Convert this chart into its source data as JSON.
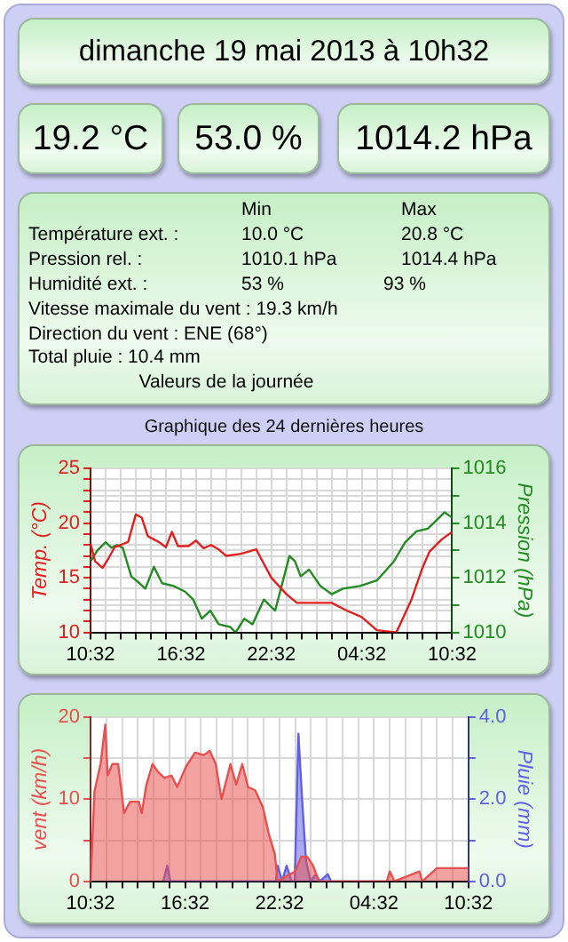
{
  "chart_data": [
    {
      "type": "other",
      "title": "dimanche 19 mai 2013 à 10h32",
      "annotations": [
        "19.2 °C",
        "53.0 %",
        "1014.2 hPa",
        "Min",
        "Max",
        "Température ext. :",
        "10.0 °C",
        "20.8 °C",
        "Pression rel. :",
        "1010.1 hPa",
        "1014.4 hPa",
        "Humidité ext. :",
        "53 %",
        "93 %",
        "Vitesse maximale du vent : 19.3 km/h",
        "Direction du vent : ENE (68°)",
        "Total pluie : 10.4 mm",
        "Valeurs de la journée"
      ]
    },
    {
      "type": "line",
      "title": "Graphique des 24 dernières heures",
      "ylabel": "Temp. (°C)",
      "y2label": "Pression (hPa)",
      "legend": false,
      "grid": true,
      "marker": "none",
      "line_style": "solid",
      "xlim": [
        "2013-05-18T10:32",
        "2013-05-19T10:32"
      ],
      "xticks": [
        {
          "value": "2013-05-18T10:32",
          "label": "10:32"
        },
        {
          "value": "2013-05-18T11:32",
          "label": null
        },
        {
          "value": "2013-05-18T12:32",
          "label": null
        },
        {
          "value": "2013-05-18T13:32",
          "label": null
        },
        {
          "value": "2013-05-18T14:32",
          "label": null
        },
        {
          "value": "2013-05-18T15:32",
          "label": null
        },
        {
          "value": "2013-05-18T16:32",
          "label": "16:32"
        },
        {
          "value": "2013-05-18T17:32",
          "label": null
        },
        {
          "value": "2013-05-18T18:32",
          "label": null
        },
        {
          "value": "2013-05-18T19:32",
          "label": null
        },
        {
          "value": "2013-05-18T20:32",
          "label": null
        },
        {
          "value": "2013-05-18T21:32",
          "label": null
        },
        {
          "value": "2013-05-18T22:32",
          "label": "22:32"
        },
        {
          "value": "2013-05-18T23:32",
          "label": null
        },
        {
          "value": "2013-05-19T00:32",
          "label": null
        },
        {
          "value": "2013-05-19T01:32",
          "label": null
        },
        {
          "value": "2013-05-19T02:32",
          "label": null
        },
        {
          "value": "2013-05-19T03:32",
          "label": null
        },
        {
          "value": "2013-05-19T04:32",
          "label": "04:32"
        },
        {
          "value": "2013-05-19T05:32",
          "label": null
        },
        {
          "value": "2013-05-19T06:32",
          "label": null
        },
        {
          "value": "2013-05-19T07:32",
          "label": null
        },
        {
          "value": "2013-05-19T08:32",
          "label": null
        },
        {
          "value": "2013-05-19T09:32",
          "label": null
        },
        {
          "value": "2013-05-19T10:32",
          "label": "10:32"
        }
      ],
      "ylim": [
        10,
        25
      ],
      "yticks": [
        10,
        {
          "value": 11,
          "label": null
        },
        {
          "value": 12,
          "label": null
        },
        {
          "value": 13,
          "label": null
        },
        {
          "value": 14,
          "label": null
        },
        15,
        {
          "value": 16,
          "label": null
        },
        {
          "value": 17,
          "label": null
        },
        {
          "value": 18,
          "label": null
        },
        {
          "value": 19,
          "label": null
        },
        20,
        {
          "value": 21,
          "label": null
        },
        {
          "value": 22,
          "label": null
        },
        {
          "value": 23,
          "label": null
        },
        {
          "value": 24,
          "label": null
        },
        25
      ],
      "y2lim": [
        1010,
        1016
      ],
      "y2ticks": [
        1010,
        {
          "value": 1011,
          "label": null
        },
        1012,
        {
          "value": 1013,
          "label": null
        },
        1014,
        {
          "value": 1015,
          "label": null
        },
        1016
      ],
      "series": [
        {
          "color": "#e02020",
          "x": [
            "2013-05-18T10:32",
            "2013-05-18T10:50",
            "2013-05-18T11:20",
            "2013-05-18T11:44",
            "2013-05-18T12:08",
            "2013-05-18T12:32",
            "2013-05-18T13:02",
            "2013-05-18T13:32",
            "2013-05-18T13:56",
            "2013-05-18T14:20",
            "2013-05-18T15:02",
            "2013-05-18T15:32",
            "2013-05-18T15:56",
            "2013-05-18T16:20",
            "2013-05-18T17:02",
            "2013-05-18T17:32",
            "2013-05-18T18:02",
            "2013-05-18T18:32",
            "2013-05-18T19:02",
            "2013-05-18T19:32",
            "2013-05-18T20:32",
            "2013-05-18T21:32",
            "2013-05-18T21:50",
            "2013-05-18T22:32",
            "2013-05-18T23:32",
            "2013-05-19T00:14",
            "2013-05-19T01:32",
            "2013-05-19T02:32",
            "2013-05-19T03:32",
            "2013-05-19T04:32",
            "2013-05-19T05:32",
            "2013-05-19T06:50",
            "2013-05-19T07:50",
            "2013-05-19T08:32",
            "2013-05-19T09:02",
            "2013-05-19T09:50",
            "2013-05-19T10:32"
          ],
          "values": [
            18.1,
            16.5,
            15.9,
            16.8,
            17.8,
            18,
            18.3,
            20.8,
            20.5,
            18.8,
            18.3,
            17.8,
            19.2,
            17.9,
            17.9,
            18.4,
            17.7,
            18,
            17.6,
            17,
            17.2,
            17.6,
            16.8,
            15,
            13.5,
            12.7,
            12.7,
            12.7,
            12,
            11.4,
            10.2,
            10,
            13,
            15.8,
            17.4,
            18.5,
            19.2
          ]
        },
        {
          "color": "#228b22",
          "axis": "y2",
          "x": [
            "2013-05-18T10:32",
            "2013-05-18T10:59",
            "2013-05-18T11:32",
            "2013-05-18T11:55",
            "2013-05-18T12:17",
            "2013-05-18T12:40",
            "2013-05-18T13:14",
            "2013-05-18T13:47",
            "2013-05-18T14:10",
            "2013-05-18T14:44",
            "2013-05-18T15:17",
            "2013-05-18T16:02",
            "2013-05-18T16:47",
            "2013-05-18T17:21",
            "2013-05-18T17:55",
            "2013-05-18T18:29",
            "2013-05-18T19:02",
            "2013-05-18T19:47",
            "2013-05-18T20:10",
            "2013-05-18T20:44",
            "2013-05-18T21:17",
            "2013-05-18T22:02",
            "2013-05-18T22:47",
            "2013-05-18T23:10",
            "2013-05-18T23:44",
            "2013-05-19T00:06",
            "2013-05-19T00:29",
            "2013-05-19T01:02",
            "2013-05-19T01:47",
            "2013-05-19T02:32",
            "2013-05-19T03:17",
            "2013-05-19T04:25",
            "2013-05-19T05:32",
            "2013-05-19T06:40",
            "2013-05-19T07:25",
            "2013-05-19T08:10",
            "2013-05-19T08:55",
            "2013-05-19T09:40",
            "2013-05-19T10:02",
            "2013-05-19T10:32"
          ],
          "values": [
            1012.6,
            1013,
            1013.3,
            1013.1,
            1013.2,
            1013.1,
            1012.05,
            1011.8,
            1011.6,
            1012.4,
            1011.8,
            1011.7,
            1011.5,
            1011.2,
            1010.5,
            1010.8,
            1010.3,
            1010.2,
            1010,
            1010.5,
            1010.3,
            1011.2,
            1010.8,
            1011.6,
            1012.8,
            1012.6,
            1012.05,
            1012.3,
            1011.7,
            1011.4,
            1011.6,
            1011.7,
            1011.9,
            1012.6,
            1013.3,
            1013.7,
            1013.8,
            1014.2,
            1014.4,
            1014.2
          ]
        }
      ]
    },
    {
      "type": "area",
      "ylabel": "vent (km/h)",
      "y2label": "Pluie (mm)",
      "legend": false,
      "grid": true,
      "marker": "none",
      "line_style": "solid",
      "xlim": [
        "2013-05-18T10:32",
        "2013-05-19T10:32"
      ],
      "xticks": [
        {
          "value": "2013-05-18T10:32",
          "label": "10:32"
        },
        {
          "value": "2013-05-18T11:32",
          "label": null
        },
        {
          "value": "2013-05-18T12:32",
          "label": null
        },
        {
          "value": "2013-05-18T13:32",
          "label": null
        },
        {
          "value": "2013-05-18T14:32",
          "label": null
        },
        {
          "value": "2013-05-18T15:32",
          "label": null
        },
        {
          "value": "2013-05-18T16:32",
          "label": "16:32"
        },
        {
          "value": "2013-05-18T17:32",
          "label": null
        },
        {
          "value": "2013-05-18T18:32",
          "label": null
        },
        {
          "value": "2013-05-18T19:32",
          "label": null
        },
        {
          "value": "2013-05-18T20:32",
          "label": null
        },
        {
          "value": "2013-05-18T21:32",
          "label": null
        },
        {
          "value": "2013-05-18T22:32",
          "label": "22:32"
        },
        {
          "value": "2013-05-18T23:32",
          "label": null
        },
        {
          "value": "2013-05-19T00:32",
          "label": null
        },
        {
          "value": "2013-05-19T01:32",
          "label": null
        },
        {
          "value": "2013-05-19T02:32",
          "label": null
        },
        {
          "value": "2013-05-19T03:32",
          "label": null
        },
        {
          "value": "2013-05-19T04:32",
          "label": "04:32"
        },
        {
          "value": "2013-05-19T05:32",
          "label": null
        },
        {
          "value": "2013-05-19T06:32",
          "label": null
        },
        {
          "value": "2013-05-19T07:32",
          "label": null
        },
        {
          "value": "2013-05-19T08:32",
          "label": null
        },
        {
          "value": "2013-05-19T09:32",
          "label": null
        },
        {
          "value": "2013-05-19T10:32",
          "label": "10:32"
        }
      ],
      "ylim": [
        0,
        20
      ],
      "yticks": [
        0,
        {
          "value": 5,
          "label": null
        },
        10,
        {
          "value": 15,
          "label": null
        },
        20
      ],
      "y2lim": [
        0,
        4
      ],
      "y2ticks": [
        {
          "value": 0,
          "label": "0.0"
        },
        {
          "value": 1,
          "label": null
        },
        {
          "value": 2,
          "label": "2.0"
        },
        {
          "value": 3,
          "label": null
        },
        {
          "value": 4,
          "label": "4.0"
        }
      ],
      "series": [
        {
          "color": "#e85050",
          "x": [
            "2013-05-18T10:32",
            "2013-05-18T10:47",
            "2013-05-18T11:10",
            "2013-05-18T11:28",
            "2013-05-18T11:37",
            "2013-05-18T11:55",
            "2013-05-18T12:17",
            "2013-05-18T12:40",
            "2013-05-18T13:02",
            "2013-05-18T13:36",
            "2013-05-18T13:47",
            "2013-05-18T14:05",
            "2013-05-18T14:28",
            "2013-05-18T14:50",
            "2013-05-18T15:13",
            "2013-05-18T15:40",
            "2013-05-18T16:02",
            "2013-05-18T16:36",
            "2013-05-18T17:10",
            "2013-05-18T17:44",
            "2013-05-18T18:06",
            "2013-05-18T18:29",
            "2013-05-18T18:51",
            "2013-05-18T19:25",
            "2013-05-18T19:47",
            "2013-05-18T20:10",
            "2013-05-18T20:32",
            "2013-05-18T20:59",
            "2013-05-18T21:29",
            "2013-05-18T21:51",
            "2013-05-18T22:14",
            "2013-05-18T22:25",
            "2013-05-18T23:32",
            "2013-05-18T23:55",
            "2013-05-19T00:17",
            "2013-05-19T00:40",
            "2013-05-19T01:02",
            "2013-05-19T05:21",
            "2013-05-19T05:32",
            "2013-05-19T05:50",
            "2013-05-19T07:25",
            "2013-05-19T07:36",
            "2013-05-19T08:32",
            "2013-05-19T09:17",
            "2013-05-19T10:32"
          ],
          "values": [
            0,
            11,
            14.3,
            19.1,
            12.9,
            14.3,
            14.3,
            8.3,
            9.7,
            9.7,
            8.3,
            11.8,
            14.3,
            13.3,
            12.6,
            12.9,
            11.5,
            14,
            15.7,
            15.4,
            15.9,
            14.3,
            10,
            14.3,
            11.8,
            14.3,
            11.5,
            11.1,
            9,
            5.8,
            3.3,
            0,
            1.2,
            3,
            3,
            1.9,
            0,
            0,
            1.2,
            0,
            1.2,
            0,
            1.6,
            1.6,
            1.6
          ]
        },
        {
          "color": "#6060e0",
          "axis": "y2",
          "x": [
            "2013-05-18T15:09",
            "2013-05-18T15:24",
            "2013-05-18T15:36",
            "2013-05-18T22:18",
            "2013-05-18T22:25",
            "2013-05-18T22:42",
            "2013-05-18T22:59",
            "2013-05-18T23:18",
            "2013-05-18T23:30",
            "2013-05-18T23:44",
            "2013-05-18T23:59",
            "2013-05-19T00:13",
            "2013-05-19T00:30",
            "2013-05-19T00:51",
            "2013-05-19T01:06",
            "2013-05-19T01:36",
            "2013-05-19T01:48"
          ],
          "values": [
            0,
            0.38,
            0,
            0,
            0.38,
            0,
            0.38,
            0,
            0,
            3.6,
            1.9,
            0.5,
            0,
            0.17,
            0,
            0.17,
            0
          ]
        }
      ]
    }
  ]
}
